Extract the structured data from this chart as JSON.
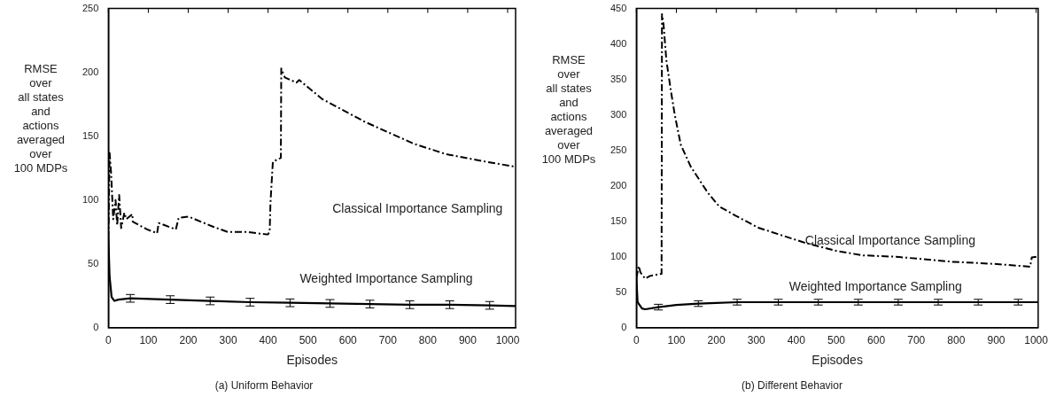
{
  "chart_data": [
    {
      "type": "line",
      "title": "(a) Uniform Behavior",
      "xlabel": "Episodes",
      "ylabel": "RMSE\nover\nall states\nand\nactions\naveraged\nover\n100 MDPs",
      "xlim": [
        0,
        1020
      ],
      "ylim": [
        0,
        250
      ],
      "xticks": [
        0,
        100,
        200,
        300,
        400,
        500,
        600,
        700,
        800,
        900,
        1000
      ],
      "yticks": [
        0,
        50,
        100,
        150,
        200,
        250
      ],
      "grid": false,
      "legend": false,
      "series": [
        {
          "name": "Classical Importance Sampling",
          "color": "#000000",
          "line_style": "dashed",
          "x": [
            0,
            3,
            7,
            12,
            18,
            22,
            27,
            32,
            40,
            45,
            60,
            61,
            97,
            122,
            126,
            169,
            176,
            201,
            263,
            299,
            345,
            399,
            404,
            406,
            412,
            432,
            433,
            442,
            471,
            478,
            536,
            644,
            766,
            845,
            946,
            1020
          ],
          "values": [
            70,
            137,
            120,
            85,
            100,
            80,
            104,
            78,
            90,
            85,
            89,
            83,
            77,
            74,
            82,
            77,
            86,
            87,
            79,
            75,
            75,
            73,
            75,
            98,
            130,
            133,
            203,
            196,
            192,
            194,
            179,
            161,
            144,
            136,
            130,
            126
          ]
        },
        {
          "name": "Weighted Importance Sampling",
          "color": "#000000",
          "line_style": "solid",
          "x": [
            0,
            3,
            8,
            15,
            25,
            55,
            155,
            255,
            355,
            455,
            555,
            655,
            755,
            855,
            955,
            1020
          ],
          "values": [
            70,
            40,
            24,
            21,
            22,
            23,
            22,
            21,
            20,
            19.5,
            19,
            18.5,
            18,
            18,
            17.5,
            17
          ],
          "errors": [
            null,
            null,
            null,
            null,
            null,
            3,
            3,
            3,
            3,
            3,
            3,
            3,
            3,
            3,
            3,
            null
          ]
        }
      ]
    },
    {
      "type": "line",
      "title": "(b) Different Behavior",
      "xlabel": "Episodes",
      "ylabel": "RMSE\nover\nall states\nand\nactions\naveraged\nover\n100 MDPs",
      "xlim": [
        0,
        1005
      ],
      "ylim": [
        0,
        450
      ],
      "xticks": [
        0,
        100,
        200,
        300,
        400,
        500,
        600,
        700,
        800,
        900,
        1000
      ],
      "yticks": [
        0,
        50,
        100,
        150,
        200,
        250,
        300,
        350,
        400,
        450
      ],
      "grid": false,
      "legend": false,
      "series": [
        {
          "name": "Classical Importance Sampling",
          "color": "#000000",
          "line_style": "dashed",
          "x": [
            0,
            6,
            10,
            22,
            34,
            63,
            64,
            68,
            75,
            86,
            96,
            111,
            136,
            179,
            207,
            248,
            305,
            354,
            420,
            502,
            567,
            649,
            731,
            789,
            895,
            985,
            989,
            1002
          ],
          "values": [
            70,
            87,
            78,
            69,
            73,
            76,
            442,
            427,
            377,
            335,
            300,
            258,
            227,
            190,
            171,
            158,
            141,
            132,
            120,
            108,
            102,
            100,
            96,
            93,
            90,
            86,
            99,
            100
          ]
        },
        {
          "name": "Weighted Importance Sampling",
          "color": "#000000",
          "line_style": "solid",
          "x": [
            0,
            3,
            14,
            22,
            55,
            100,
            155,
            200,
            252,
            355,
            455,
            555,
            655,
            755,
            855,
            955,
            1005
          ],
          "values": [
            70,
            36,
            27,
            26,
            29,
            32,
            34,
            35,
            36,
            36,
            36,
            36,
            36,
            36,
            36,
            36,
            36
          ],
          "errors": [
            null,
            null,
            null,
            null,
            4,
            null,
            4,
            null,
            4,
            4,
            4,
            4,
            4,
            4,
            4,
            4,
            null
          ]
        }
      ]
    }
  ]
}
